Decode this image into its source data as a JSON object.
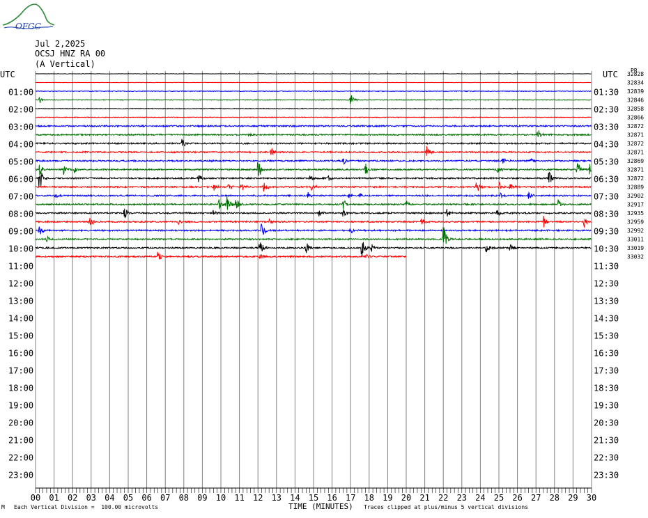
{
  "header": {
    "logo_text": "OFGC",
    "date": "Jul 2,2025",
    "station": "OCSJ HNZ RA 00",
    "component": "(A Vertical)",
    "left_utc": "UTC",
    "right_utc": "UTC",
    "corner_note": "PR"
  },
  "footer": {
    "division_note": "Each Vertical Division =  100.00 microvolts",
    "x_title": "TIME (MINUTES)",
    "clip_note": "Traces clipped at plus/minus 5 vertical divisions",
    "corner_mark": "M"
  },
  "chart_data": {
    "type": "line",
    "subtype": "helicorder",
    "title": "OCSJ HNZ RA 00 (A Vertical)",
    "xlabel": "TIME (MINUTES)",
    "ylabel": "UTC",
    "xlim": [
      0,
      30
    ],
    "x_ticks": [
      "00",
      "01",
      "02",
      "03",
      "04",
      "05",
      "06",
      "07",
      "08",
      "09",
      "10",
      "11",
      "12",
      "13",
      "14",
      "15",
      "16",
      "17",
      "18",
      "19",
      "20",
      "21",
      "22",
      "23",
      "24",
      "25",
      "26",
      "27",
      "28",
      "29",
      "30"
    ],
    "left_hour_labels": [
      "01:00",
      "02:00",
      "03:00",
      "04:00",
      "05:00",
      "06:00",
      "07:00",
      "08:00",
      "09:00",
      "10:00",
      "11:00",
      "12:00",
      "13:00",
      "14:00",
      "15:00",
      "16:00",
      "17:00",
      "18:00",
      "19:00",
      "20:00",
      "21:00",
      "22:00",
      "23:00"
    ],
    "right_hour_labels": [
      "01:30",
      "02:30",
      "03:30",
      "04:30",
      "05:30",
      "06:30",
      "07:30",
      "08:30",
      "09:30",
      "10:30",
      "11:30",
      "12:30",
      "13:30",
      "14:30",
      "15:30",
      "16:30",
      "17:30",
      "18:30",
      "19:30",
      "20:30",
      "21:30",
      "22:30",
      "23:30"
    ],
    "trace_colors": [
      "#000000",
      "#ff0000",
      "#0000ff",
      "#007000"
    ],
    "trace_offsets": [
      "32828",
      "32834",
      "32839",
      "32846",
      "32858",
      "32866",
      "32872",
      "32871",
      "32872",
      "32871",
      "32869",
      "32871",
      "32872",
      "32889",
      "32902",
      "32917",
      "32935",
      "32959",
      "32992",
      "33011",
      "33019",
      "33032"
    ],
    "rows_recorded": 22,
    "last_row_end_minute": 20,
    "events": [
      {
        "row": 3,
        "minute": 0.2,
        "amp": 6
      },
      {
        "row": 3,
        "minute": 17.0,
        "amp": 10
      },
      {
        "row": 7,
        "minute": 11.5,
        "amp": 3
      },
      {
        "row": 7,
        "minute": 27.1,
        "amp": 8
      },
      {
        "row": 8,
        "minute": 7.9,
        "amp": 8
      },
      {
        "row": 9,
        "minute": 12.7,
        "amp": 7
      },
      {
        "row": 9,
        "minute": 21.1,
        "amp": 10
      },
      {
        "row": 10,
        "minute": 16.6,
        "amp": 8
      },
      {
        "row": 10,
        "minute": 25.2,
        "amp": 7
      },
      {
        "row": 10,
        "minute": 26.7,
        "amp": 6
      },
      {
        "row": 11,
        "minute": 0.2,
        "amp": 10
      },
      {
        "row": 11,
        "minute": 1.5,
        "amp": 8
      },
      {
        "row": 11,
        "minute": 2.1,
        "amp": 6
      },
      {
        "row": 11,
        "minute": 12.0,
        "amp": 18
      },
      {
        "row": 11,
        "minute": 17.8,
        "amp": 9
      },
      {
        "row": 11,
        "minute": 24.9,
        "amp": 9
      },
      {
        "row": 11,
        "minute": 29.2,
        "amp": 18
      },
      {
        "row": 11,
        "minute": 29.9,
        "amp": 10
      },
      {
        "row": 12,
        "minute": 0.2,
        "amp": 22
      },
      {
        "row": 12,
        "minute": 8.8,
        "amp": 6
      },
      {
        "row": 12,
        "minute": 14.8,
        "amp": 5
      },
      {
        "row": 12,
        "minute": 15.8,
        "amp": 6
      },
      {
        "row": 12,
        "minute": 27.7,
        "amp": 12
      },
      {
        "row": 13,
        "minute": 9.6,
        "amp": 8
      },
      {
        "row": 13,
        "minute": 10.4,
        "amp": 7
      },
      {
        "row": 13,
        "minute": 11.1,
        "amp": 7
      },
      {
        "row": 13,
        "minute": 12.3,
        "amp": 12
      },
      {
        "row": 13,
        "minute": 14.9,
        "amp": 5
      },
      {
        "row": 13,
        "minute": 23.8,
        "amp": 10
      },
      {
        "row": 13,
        "minute": 25.0,
        "amp": 9
      },
      {
        "row": 13,
        "minute": 25.6,
        "amp": 7
      },
      {
        "row": 14,
        "minute": 1.0,
        "amp": 7
      },
      {
        "row": 14,
        "minute": 14.7,
        "amp": 6
      },
      {
        "row": 14,
        "minute": 16.9,
        "amp": 5
      },
      {
        "row": 14,
        "minute": 17.5,
        "amp": 6
      },
      {
        "row": 14,
        "minute": 25.1,
        "amp": 5
      },
      {
        "row": 14,
        "minute": 26.6,
        "amp": 6
      },
      {
        "row": 15,
        "minute": 9.9,
        "amp": 10
      },
      {
        "row": 15,
        "minute": 10.3,
        "amp": 16
      },
      {
        "row": 15,
        "minute": 10.8,
        "amp": 12
      },
      {
        "row": 15,
        "minute": 16.6,
        "amp": 9
      },
      {
        "row": 15,
        "minute": 20.0,
        "amp": 6
      },
      {
        "row": 15,
        "minute": 28.2,
        "amp": 8
      },
      {
        "row": 16,
        "minute": 4.8,
        "amp": 12
      },
      {
        "row": 16,
        "minute": 9.6,
        "amp": 6
      },
      {
        "row": 16,
        "minute": 15.3,
        "amp": 6
      },
      {
        "row": 16,
        "minute": 16.6,
        "amp": 9
      },
      {
        "row": 16,
        "minute": 22.2,
        "amp": 7
      },
      {
        "row": 16,
        "minute": 24.9,
        "amp": 5
      },
      {
        "row": 17,
        "minute": 2.9,
        "amp": 14
      },
      {
        "row": 17,
        "minute": 7.7,
        "amp": 5
      },
      {
        "row": 17,
        "minute": 12.6,
        "amp": 6
      },
      {
        "row": 17,
        "minute": 20.8,
        "amp": 7
      },
      {
        "row": 17,
        "minute": 27.4,
        "amp": 10
      },
      {
        "row": 17,
        "minute": 29.6,
        "amp": 8
      },
      {
        "row": 18,
        "minute": 0.2,
        "amp": 8
      },
      {
        "row": 18,
        "minute": 12.2,
        "amp": 14
      },
      {
        "row": 18,
        "minute": 17.0,
        "amp": 6
      },
      {
        "row": 19,
        "minute": 0.6,
        "amp": 5
      },
      {
        "row": 19,
        "minute": 22.0,
        "amp": 24
      },
      {
        "row": 20,
        "minute": 12.1,
        "amp": 14
      },
      {
        "row": 20,
        "minute": 14.6,
        "amp": 10
      },
      {
        "row": 20,
        "minute": 17.6,
        "amp": 20
      },
      {
        "row": 20,
        "minute": 18.1,
        "amp": 9
      },
      {
        "row": 20,
        "minute": 24.3,
        "amp": 10
      },
      {
        "row": 20,
        "minute": 25.6,
        "amp": 7
      },
      {
        "row": 21,
        "minute": 6.6,
        "amp": 9
      },
      {
        "row": 21,
        "minute": 12.1,
        "amp": 6
      },
      {
        "row": 21,
        "minute": 17.8,
        "amp": 5
      }
    ]
  }
}
